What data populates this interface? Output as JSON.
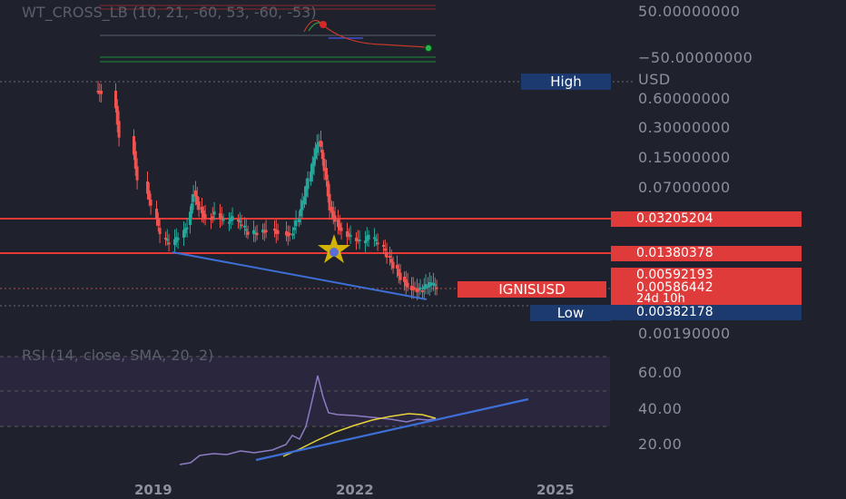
{
  "wt_panel": {
    "title": "WT_CROSS_LB (10, 21, -60, 53, -60, -53)",
    "axis": [
      "50.00000000",
      "−50.00000000"
    ]
  },
  "price_panel": {
    "currency": "USD",
    "axis_labels": [
      "0.60000000",
      "0.30000000",
      "0.15000000",
      "0.07000000",
      "0.00190000"
    ],
    "high_label": "High",
    "low_label": "Low",
    "low_value": "0.00382178",
    "resistance_1": "0.03205204",
    "resistance_2": "0.01380378",
    "symbol": "IGNISUSD",
    "bar_value_1": "0.00592193",
    "bar_value_2": "0.00586442",
    "countdown": "24d 10h"
  },
  "rsi_panel": {
    "title": "RSI (14, close, SMA, 20, 2)",
    "axis": [
      "60.00",
      "40.00",
      "20.00"
    ]
  },
  "time_axis": [
    "2019",
    "2022",
    "2025"
  ],
  "colors": {
    "up": "#26a69a",
    "down": "#ef5350",
    "line_red": "#e53935",
    "trend_blue": "#3d6fd6",
    "rsi_line": "#8e7cc3",
    "rsi_ma": "#e8d43a",
    "tag_blue": "#1c3a6e"
  }
}
